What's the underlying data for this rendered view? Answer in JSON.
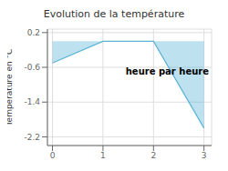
{
  "chart_data": {
    "type": "area",
    "title": "Evolution de la température",
    "xlabel": "heure par heure",
    "ylabel": "Température en °C",
    "x": [
      0,
      1,
      2,
      3
    ],
    "values": [
      -0.5,
      0.0,
      0.0,
      -2.0
    ],
    "color": "#5ab4d6",
    "xlim": [
      -0.1,
      3.15
    ],
    "ylim": [
      -2.4,
      0.28
    ],
    "xticks": [
      0,
      1,
      2,
      3
    ],
    "yticks": [
      0.2,
      -0.6,
      -1.4,
      -2.2
    ],
    "grid": true
  }
}
